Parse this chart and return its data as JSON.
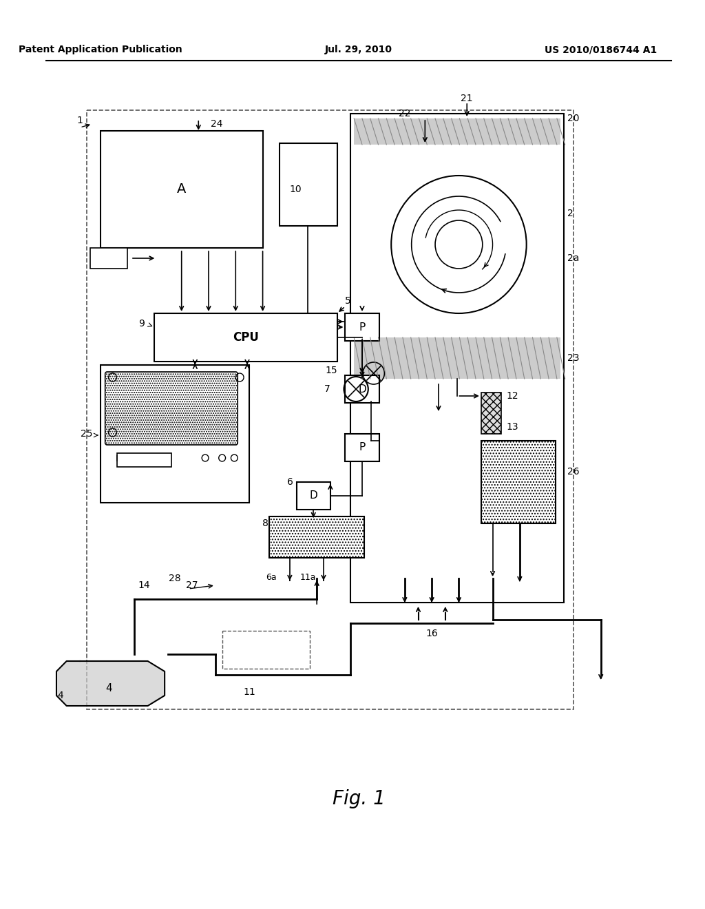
{
  "bg_color": "#ffffff",
  "line_color": "#000000",
  "header_left": "Patent Application Publication",
  "header_center": "Jul. 29, 2010",
  "header_right": "US 2010/0186744 A1",
  "fig_label": "Fig. 1",
  "title_fontsize": 11,
  "label_fontsize": 9.5
}
